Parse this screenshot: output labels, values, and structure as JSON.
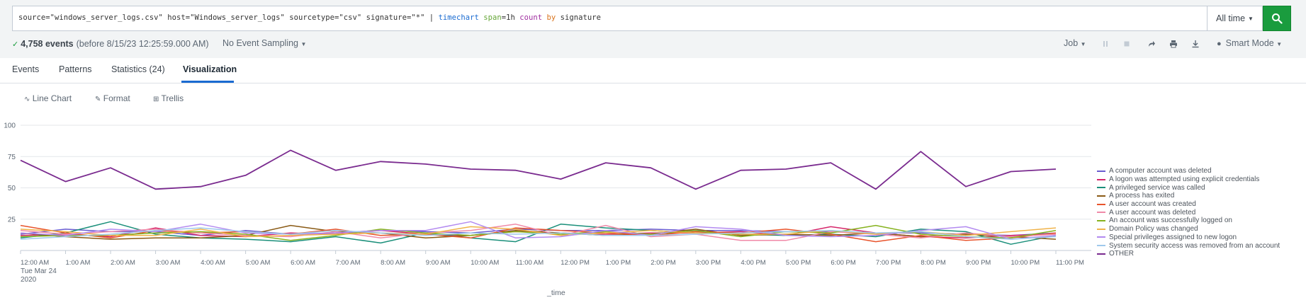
{
  "search": {
    "query_parts": {
      "p1": "source=\"windows_server_logs.csv\" host=\"Windows_server_logs\" sourcetype=\"csv\" signature=\"*\" | ",
      "p2": "timechart",
      "p3": " span",
      "p4": "=1h ",
      "p5": "count",
      "p6": " by",
      "p7": " signature"
    },
    "time_range": "All time",
    "go_icon": "search-icon"
  },
  "status": {
    "check_icon": "checkmark-icon",
    "events_count": "4,758 events",
    "events_meta": "(before 8/15/23 12:25:59.000 AM)",
    "sampling": "No Event Sampling",
    "job": "Job",
    "smart_mode": "Smart Mode"
  },
  "tabs": [
    {
      "label": "Events"
    },
    {
      "label": "Patterns"
    },
    {
      "label": "Statistics (24)"
    },
    {
      "label": "Visualization"
    }
  ],
  "viz_toolbar": {
    "line_chart": "Line Chart",
    "format": "Format",
    "trellis": "Trellis"
  },
  "chart_data": {
    "type": "line",
    "xlabel": "_time",
    "date_label_line1": "Tue Mar 24",
    "date_label_line2": "2020",
    "ylim": [
      0,
      100
    ],
    "yticks": [
      "25",
      "50",
      "75",
      "100"
    ],
    "x": [
      "12:00 AM",
      "1:00 AM",
      "2:00 AM",
      "3:00 AM",
      "4:00 AM",
      "5:00 AM",
      "6:00 AM",
      "7:00 AM",
      "8:00 AM",
      "9:00 AM",
      "10:00 AM",
      "11:00 AM",
      "12:00 PM",
      "1:00 PM",
      "2:00 PM",
      "3:00 PM",
      "4:00 PM",
      "5:00 PM",
      "6:00 PM",
      "7:00 PM",
      "8:00 PM",
      "9:00 PM",
      "10:00 PM",
      "11:00 PM"
    ],
    "series": [
      {
        "name": "A computer account was deleted",
        "color": "#6a5ccf",
        "values": [
          13,
          17,
          15,
          15,
          12,
          16,
          13,
          14,
          16,
          15,
          14,
          17,
          16,
          16,
          17,
          16,
          16,
          15,
          15,
          14,
          14,
          13,
          12,
          14
        ]
      },
      {
        "name": "A logon was attempted using explicit credentials",
        "color": "#d6276b",
        "values": [
          12,
          13,
          11,
          18,
          12,
          11,
          14,
          13,
          16,
          13,
          12,
          15,
          14,
          13,
          14,
          14,
          15,
          12,
          19,
          14,
          11,
          10,
          12,
          13
        ]
      },
      {
        "name": "A privileged service was called",
        "color": "#1a8f7a",
        "values": [
          10,
          14,
          23,
          13,
          10,
          9,
          7,
          11,
          6,
          14,
          10,
          7,
          21,
          18,
          16,
          14,
          13,
          12,
          13,
          11,
          17,
          15,
          5,
          12
        ]
      },
      {
        "name": "A process has exited",
        "color": "#8a5a15",
        "values": [
          14,
          11,
          9,
          10,
          10,
          12,
          20,
          15,
          14,
          10,
          12,
          16,
          14,
          12,
          13,
          17,
          12,
          13,
          12,
          14,
          11,
          13,
          11,
          9
        ]
      },
      {
        "name": "A user account was created",
        "color": "#e8542c",
        "values": [
          20,
          14,
          10,
          16,
          14,
          15,
          13,
          17,
          12,
          13,
          10,
          18,
          16,
          14,
          12,
          15,
          14,
          17,
          13,
          7,
          12,
          8,
          10,
          14
        ]
      },
      {
        "name": "A user account was deleted",
        "color": "#f08aa8",
        "values": [
          16,
          13,
          15,
          17,
          14,
          12,
          11,
          15,
          10,
          14,
          16,
          21,
          12,
          20,
          11,
          13,
          8,
          8,
          15,
          13,
          10,
          14,
          11,
          13
        ]
      },
      {
        "name": "An account was successfully logged on",
        "color": "#86b21e",
        "values": [
          11,
          12,
          12,
          14,
          15,
          13,
          8,
          12,
          17,
          14,
          12,
          15,
          13,
          15,
          13,
          16,
          11,
          15,
          14,
          20,
          13,
          11,
          10,
          16
        ]
      },
      {
        "name": "Domain Policy was changed",
        "color": "#f0b34a",
        "values": [
          17,
          15,
          12,
          12,
          17,
          11,
          12,
          13,
          14,
          13,
          19,
          17,
          12,
          14,
          16,
          14,
          13,
          13,
          16,
          13,
          15,
          12,
          15,
          18
        ]
      },
      {
        "name": "Special privileges assigned to new logon",
        "color": "#b38af0",
        "values": [
          14,
          12,
          17,
          15,
          21,
          14,
          13,
          14,
          16,
          16,
          23,
          10,
          11,
          16,
          12,
          19,
          17,
          12,
          11,
          12,
          16,
          19,
          9,
          12
        ]
      },
      {
        "name": "System security access was removed from an account",
        "color": "#9ec9ec",
        "values": [
          9,
          11,
          13,
          16,
          18,
          15,
          13,
          16,
          14,
          12,
          14,
          13,
          14,
          12,
          12,
          13,
          14,
          15,
          16,
          14,
          15,
          11,
          9,
          11
        ]
      },
      {
        "name": "OTHER",
        "color": "#7a2b8f",
        "values": [
          72,
          55,
          66,
          49,
          51,
          60,
          80,
          64,
          71,
          69,
          65,
          64,
          57,
          70,
          66,
          49,
          64,
          65,
          70,
          49,
          79,
          51,
          63,
          65
        ]
      }
    ]
  }
}
